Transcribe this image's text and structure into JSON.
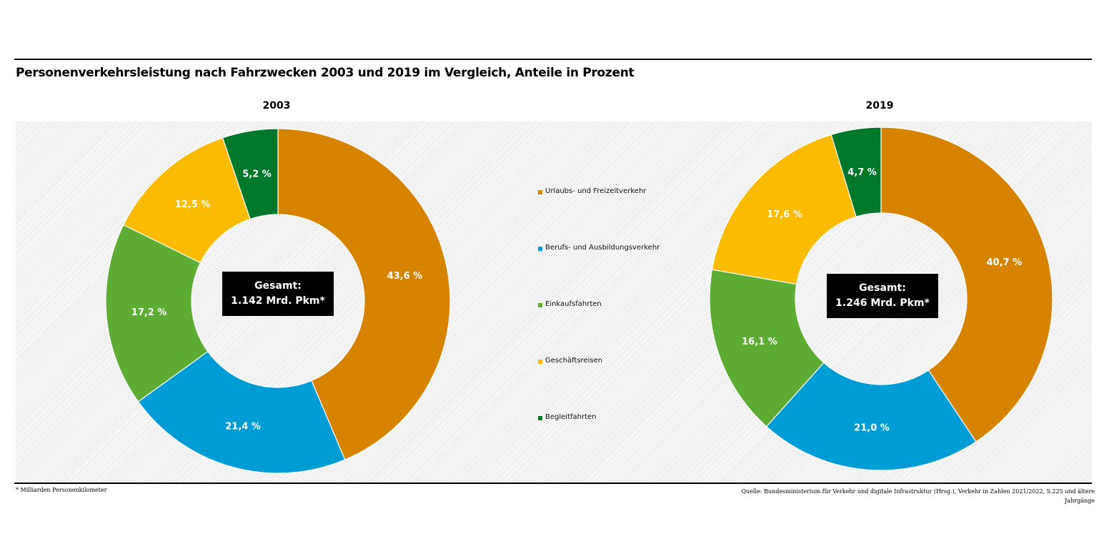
{
  "title": "Personenverkehrsleistung nach Fahrzwecken 2003 und 2019 im Vergleich, Anteile in Prozent",
  "legend": [
    {
      "label": "Urlaubs- und Freizeitverkehr",
      "color": "#D68400"
    },
    {
      "label": "Berufs- und Ausbildungsverkehr",
      "color": "#009CD6"
    },
    {
      "label": "Einkaufsfahrten",
      "color": "#5DAD34"
    },
    {
      "label": "Geschäftsreisen",
      "color": "#FABB00"
    },
    {
      "label": "Begleitfahrten",
      "color": "#00782B"
    }
  ],
  "chart_data": [
    {
      "type": "pie",
      "variant": "donut",
      "title": "2003",
      "categories": [
        "Urlaubs- und Freizeitverkehr",
        "Berufs- und Ausbildungsverkehr",
        "Einkaufsfahrten",
        "Geschäftsreisen",
        "Begleitfahrten"
      ],
      "values": [
        43.6,
        21.4,
        17.2,
        12.5,
        5.2
      ],
      "labels": [
        "43,6 %",
        "21,4 %",
        "17,2 %",
        "12,5 %",
        "5,2 %"
      ],
      "center_label": [
        "Gesamt:",
        "1.142 Mrd. Pkm*"
      ]
    },
    {
      "type": "pie",
      "variant": "donut",
      "title": "2019",
      "categories": [
        "Urlaubs- und Freizeitverkehr",
        "Berufs- und Ausbildungsverkehr",
        "Einkaufsfahrten",
        "Geschäftsreisen",
        "Begleitfahrten"
      ],
      "values": [
        40.7,
        21.0,
        16.1,
        17.6,
        4.7
      ],
      "labels": [
        "40,7 %",
        "21,0 %",
        "16,1 %",
        "17,6 %",
        "4,7 %"
      ],
      "center_label": [
        "Gesamt:",
        "1.246 Mrd. Pkm*"
      ]
    }
  ],
  "footnote": "* Milliarden Personenkilometer",
  "source_line1": "Quelle: Bundesministerium für Verkehr und digitale Infrastruktur (Hrsg.), Verkehr in Zahlen 2021/2022, S.225 und ältere",
  "source_line2": "Jahrgänge"
}
